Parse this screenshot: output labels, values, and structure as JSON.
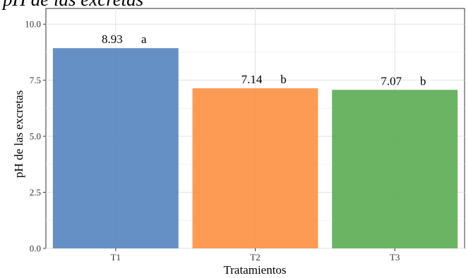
{
  "chart_data": {
    "type": "bar",
    "title": "pH de las excretas",
    "xlabel": "Tratamientos",
    "ylabel": "pH de las excretas",
    "categories": [
      "T1",
      "T2",
      "T3"
    ],
    "values": [
      8.93,
      7.14,
      7.07
    ],
    "labels": [
      "8.93",
      "7.14",
      "7.07"
    ],
    "groups": [
      "a",
      "b",
      "b"
    ],
    "colors": [
      "#4f81bd",
      "#fd8d3c",
      "#55aa4f"
    ],
    "ylim": [
      0,
      10.7
    ],
    "yticks": [
      0.0,
      2.5,
      5.0,
      7.5,
      10.0
    ],
    "ytick_labels": [
      "0.0",
      "2.5",
      "5.0",
      "7.5",
      "10.0"
    ],
    "grid": true,
    "legend": "none"
  }
}
